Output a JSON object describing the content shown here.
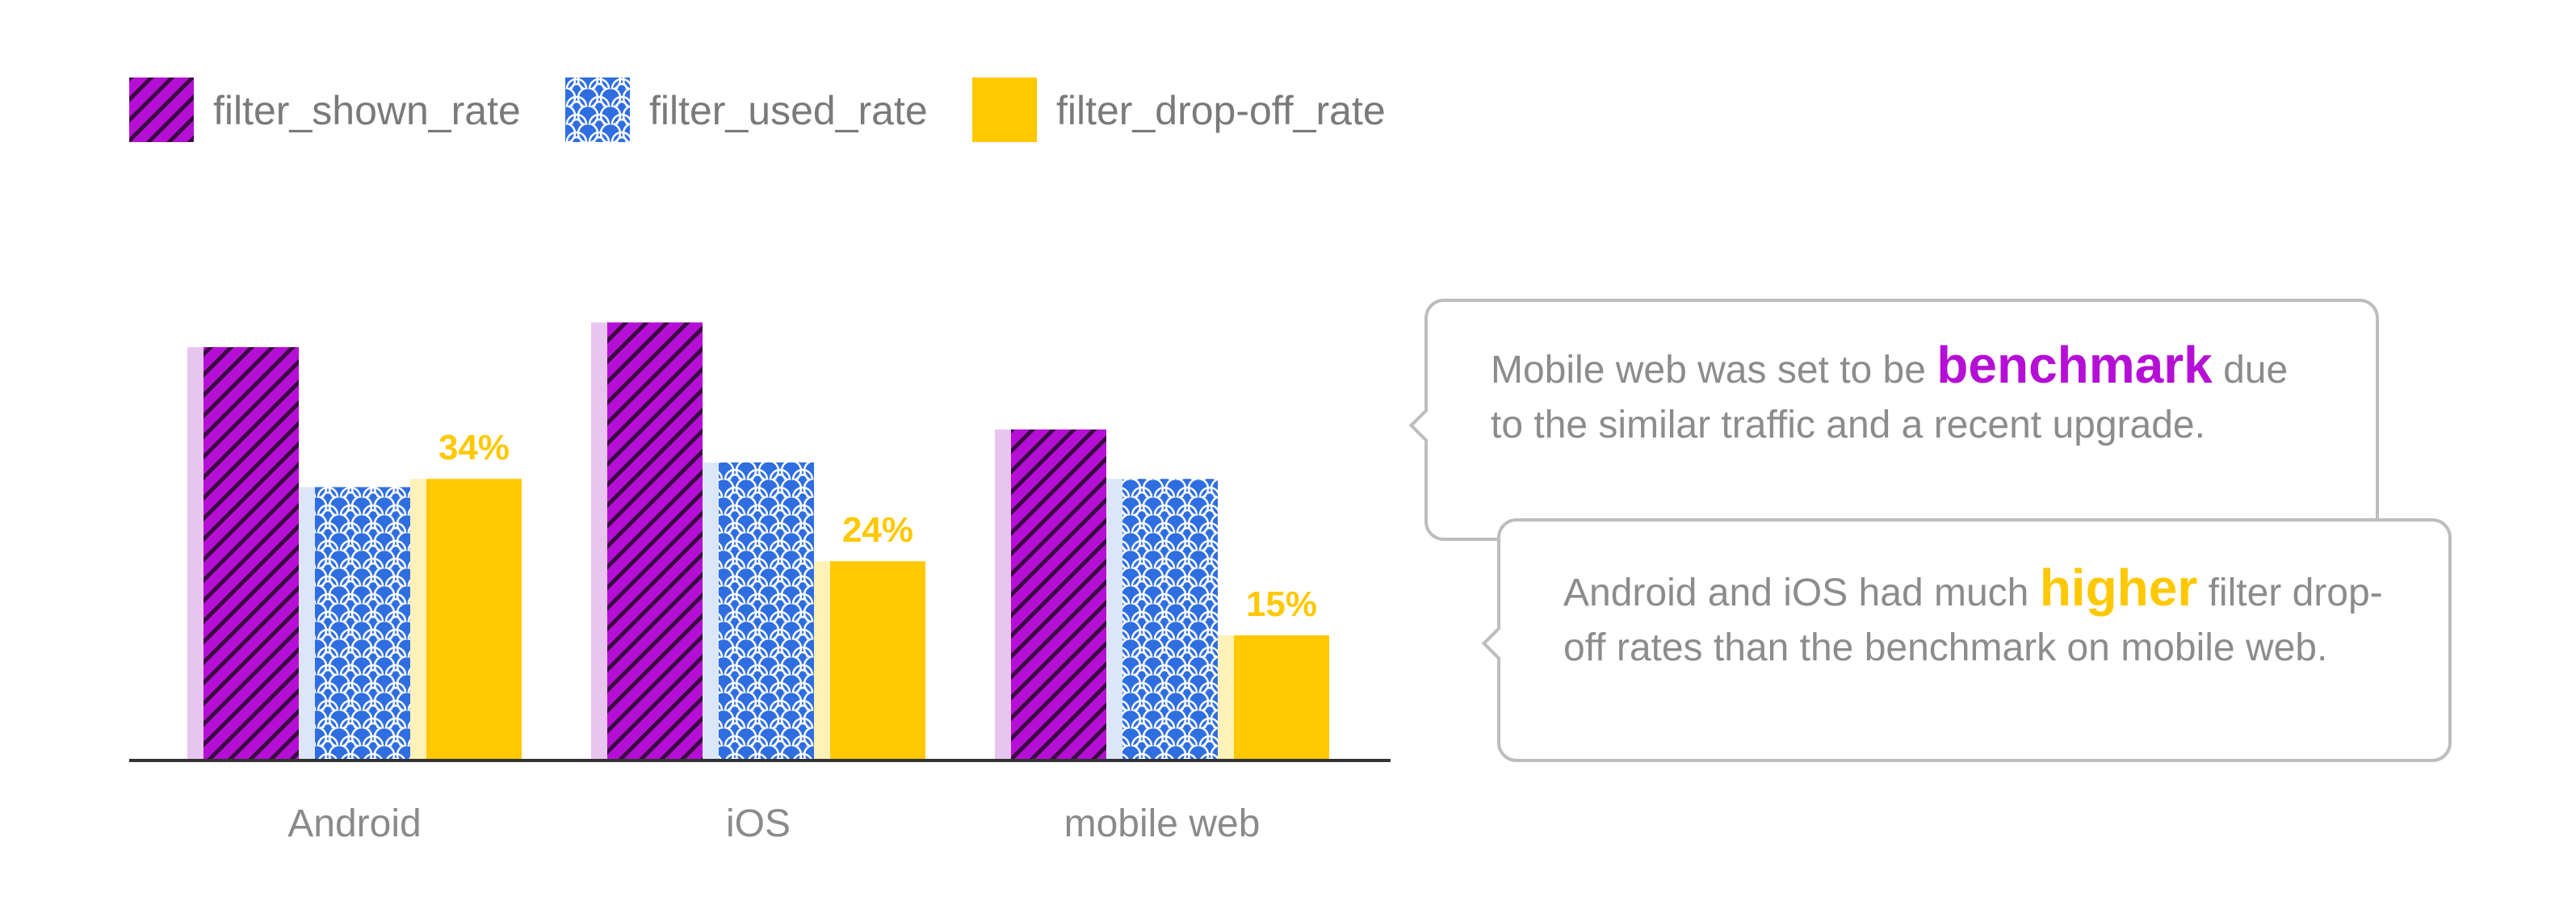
{
  "chart_data": {
    "type": "bar",
    "categories": [
      "Android",
      "iOS",
      "mobile web"
    ],
    "series": [
      {
        "name": "filter_shown_rate",
        "values": [
          50,
          53,
          40
        ],
        "color": "#b50fd6"
      },
      {
        "name": "filter_used_rate",
        "values": [
          33,
          36,
          34
        ],
        "color": "#2f6ee0"
      },
      {
        "name": "filter_drop-off_rate",
        "values": [
          34,
          24,
          15
        ],
        "color": "#ffc800"
      }
    ],
    "data_labels": {
      "series": "filter_drop-off_rate",
      "texts": [
        "34%",
        "24%",
        "15%"
      ]
    },
    "legend_position": "top-left",
    "grid": false
  },
  "callouts": [
    {
      "before": "Mobile web was set to be ",
      "highlight": "benchmark",
      "after": " due to the similar traffic and a recent upgrade.",
      "highlight_color": "#b50fd6"
    },
    {
      "before": "Android and iOS had much ",
      "highlight": "higher",
      "after": " filter drop-off rates than the benchmark on mobile web.",
      "highlight_color": "#ffc800"
    }
  ]
}
